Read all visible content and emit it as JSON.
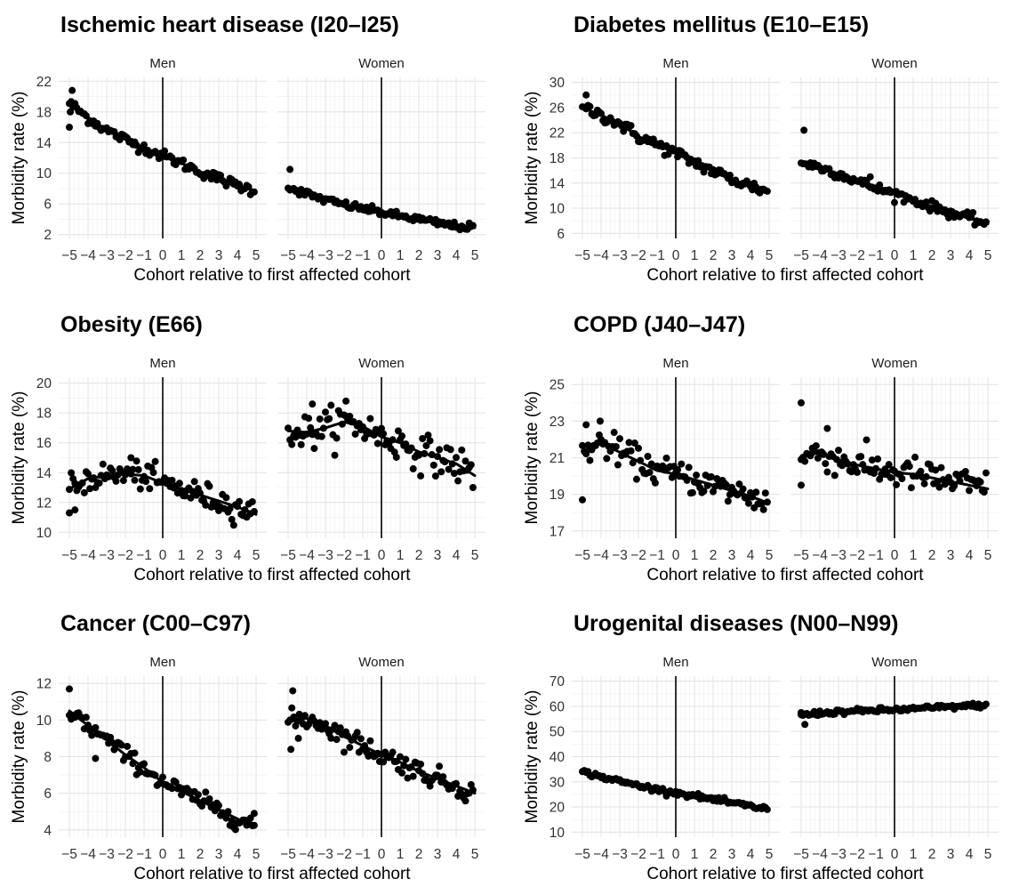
{
  "chart_data": [
    {
      "type": "scatter",
      "title": "Ischemic heart disease (I20–I25)",
      "xlabel": "Cohort relative to first affected cohort",
      "ylabel": "Morbidity rate (%)",
      "ylim": [
        1.5,
        22.5
      ],
      "yticks": [
        "2",
        "6",
        "10",
        "14",
        "18",
        "22"
      ],
      "xticks": [
        "−5",
        "−4",
        "−3",
        "−2",
        "−1",
        "0",
        "1",
        "2",
        "3",
        "4",
        "5"
      ],
      "grid": true,
      "panels": [
        {
          "label": "Men",
          "curve": [
            [
              -5,
              19.2
            ],
            [
              -4,
              17.2
            ],
            [
              -3,
              15.6
            ],
            [
              -2,
              14.4
            ],
            [
              -1,
              13.3
            ],
            [
              0,
              12.3
            ],
            [
              1,
              11.3
            ],
            [
              2,
              10.2
            ],
            [
              3,
              9.3
            ],
            [
              4,
              8.4
            ],
            [
              5,
              7.7
            ]
          ],
          "noise": 0.35,
          "outliers": [
            [
              -5,
              16.0
            ],
            [
              -4.85,
              20.8
            ],
            [
              -4.95,
              18.0
            ]
          ]
        },
        {
          "label": "Women",
          "curve": [
            [
              -5,
              8.2
            ],
            [
              -4,
              7.3
            ],
            [
              -3,
              6.5
            ],
            [
              -2,
              5.9
            ],
            [
              -1,
              5.4
            ],
            [
              0,
              4.9
            ],
            [
              1,
              4.4
            ],
            [
              2,
              4.0
            ],
            [
              3,
              3.5
            ],
            [
              4,
              3.1
            ],
            [
              5,
              2.9
            ]
          ],
          "noise": 0.25,
          "outliers": [
            [
              -4.9,
              10.5
            ]
          ]
        }
      ]
    },
    {
      "type": "scatter",
      "title": "Diabetes mellitus (E10–E15)",
      "xlabel": "Cohort relative to first affected cohort",
      "ylabel": "Morbidity rate (%)",
      "ylim": [
        5.2,
        30.8
      ],
      "yticks": [
        "6",
        "10",
        "14",
        "18",
        "22",
        "26",
        "30"
      ],
      "xticks": [
        "−5",
        "−4",
        "−3",
        "−2",
        "−1",
        "0",
        "1",
        "2",
        "3",
        "4",
        "5"
      ],
      "grid": true,
      "panels": [
        {
          "label": "Men",
          "curve": [
            [
              -5,
              26.0
            ],
            [
              -4,
              24.8
            ],
            [
              -3,
              23.4
            ],
            [
              -2,
              21.4
            ],
            [
              -1,
              20.1
            ],
            [
              0,
              18.7
            ],
            [
              1,
              17.3
            ],
            [
              2,
              15.9
            ],
            [
              3,
              14.6
            ],
            [
              4,
              13.6
            ],
            [
              5,
              12.5
            ]
          ],
          "noise": 0.5,
          "outliers": [
            [
              -4.8,
              28.0
            ]
          ]
        },
        {
          "label": "Women",
          "curve": [
            [
              -5,
              17.3
            ],
            [
              -4,
              16.5
            ],
            [
              -3,
              15.5
            ],
            [
              -2,
              14.3
            ],
            [
              -1,
              13.2
            ],
            [
              0,
              12.3
            ],
            [
              1,
              11.3
            ],
            [
              2,
              10.3
            ],
            [
              3,
              9.3
            ],
            [
              4,
              8.4
            ],
            [
              5,
              7.5
            ]
          ],
          "noise": 0.4,
          "outliers": [
            [
              -4.85,
              22.4
            ],
            [
              -1.3,
              15.0
            ]
          ]
        }
      ]
    },
    {
      "type": "scatter",
      "title": "Obesity (E66)",
      "xlabel": "Cohort relative to first affected cohort",
      "ylabel": "Morbidity rate (%)",
      "ylim": [
        9.6,
        20.4
      ],
      "yticks": [
        "10",
        "12",
        "14",
        "16",
        "18",
        "20"
      ],
      "xticks": [
        "−5",
        "−4",
        "−3",
        "−2",
        "−1",
        "0",
        "1",
        "2",
        "3",
        "4",
        "5"
      ],
      "grid": true,
      "panels": [
        {
          "label": "Men",
          "curve": [
            [
              -5,
              12.9
            ],
            [
              -4,
              13.6
            ],
            [
              -3,
              13.8
            ],
            [
              -2,
              13.9
            ],
            [
              -1,
              13.8
            ],
            [
              0,
              13.3
            ],
            [
              1,
              12.9
            ],
            [
              2,
              12.5
            ],
            [
              3,
              12.1
            ],
            [
              4,
              11.7
            ],
            [
              5,
              11.2
            ]
          ],
          "noise": 0.45,
          "outliers": [
            [
              -5,
              11.3
            ],
            [
              -4.7,
              11.5
            ],
            [
              -1.7,
              15.0
            ]
          ]
        },
        {
          "label": "Women",
          "curve": [
            [
              -5,
              16.8
            ],
            [
              -4,
              16.7
            ],
            [
              -3,
              17.0
            ],
            [
              -2,
              17.4
            ],
            [
              -1,
              17.1
            ],
            [
              0,
              16.4
            ],
            [
              1,
              16.0
            ],
            [
              2,
              15.4
            ],
            [
              3,
              15.0
            ],
            [
              4,
              14.6
            ],
            [
              5,
              13.8
            ]
          ],
          "noise": 0.6,
          "outliers": [
            [
              -1.9,
              18.8
            ],
            [
              -3.7,
              18.6
            ]
          ]
        }
      ]
    },
    {
      "type": "scatter",
      "title": "COPD (J40–J47)",
      "xlabel": "Cohort relative to first affected cohort",
      "ylabel": "Morbidity rate (%)",
      "ylim": [
        16.6,
        25.4
      ],
      "yticks": [
        "17",
        "19",
        "21",
        "23",
        "25"
      ],
      "xticks": [
        "−5",
        "−4",
        "−3",
        "−2",
        "−1",
        "0",
        "1",
        "2",
        "3",
        "4",
        "5"
      ],
      "grid": true,
      "panels": [
        {
          "label": "Men",
          "curve": [
            [
              -5,
              21.3
            ],
            [
              -4,
              21.8
            ],
            [
              -3,
              21.3
            ],
            [
              -2,
              20.8
            ],
            [
              -1,
              20.3
            ],
            [
              0,
              20.1
            ],
            [
              1,
              19.8
            ],
            [
              2,
              19.5
            ],
            [
              3,
              19.2
            ],
            [
              4,
              18.9
            ],
            [
              5,
              18.5
            ]
          ],
          "noise": 0.4,
          "outliers": [
            [
              -5,
              18.7
            ],
            [
              -4.8,
              22.8
            ],
            [
              -4.05,
              23.0
            ]
          ]
        },
        {
          "label": "Women",
          "curve": [
            [
              -5,
              21.0
            ],
            [
              -4,
              21.3
            ],
            [
              -3,
              20.9
            ],
            [
              -2,
              20.6
            ],
            [
              -1,
              20.4
            ],
            [
              0,
              20.2
            ],
            [
              1,
              20.1
            ],
            [
              2,
              19.9
            ],
            [
              3,
              19.7
            ],
            [
              4,
              19.5
            ],
            [
              5,
              19.3
            ]
          ],
          "noise": 0.45,
          "outliers": [
            [
              -5,
              24.0
            ],
            [
              -5,
              19.5
            ],
            [
              -3.6,
              22.6
            ]
          ]
        }
      ]
    },
    {
      "type": "scatter",
      "title": "Cancer (C00–C97)",
      "xlabel": "Cohort relative to first affected cohort",
      "ylabel": "Morbidity rate (%)",
      "ylim": [
        3.6,
        12.4
      ],
      "yticks": [
        "4",
        "6",
        "8",
        "10",
        "12"
      ],
      "xticks": [
        "−5",
        "−4",
        "−3",
        "−2",
        "−1",
        "0",
        "1",
        "2",
        "3",
        "4",
        "5"
      ],
      "grid": true,
      "panels": [
        {
          "label": "Men",
          "curve": [
            [
              -5,
              10.5
            ],
            [
              -4,
              9.7
            ],
            [
              -3,
              8.9
            ],
            [
              -2,
              8.1
            ],
            [
              -1,
              7.4
            ],
            [
              0,
              6.6
            ],
            [
              1,
              6.1
            ],
            [
              2,
              5.6
            ],
            [
              3,
              5.1
            ],
            [
              4,
              4.6
            ],
            [
              5,
              4.2
            ]
          ],
          "noise": 0.25,
          "outliers": [
            [
              -5,
              11.7
            ],
            [
              -3.6,
              7.9
            ],
            [
              4.9,
              4.9
            ]
          ]
        },
        {
          "label": "Women",
          "curve": [
            [
              -5,
              9.9
            ],
            [
              -4,
              10.1
            ],
            [
              -3,
              9.7
            ],
            [
              -2,
              9.1
            ],
            [
              -1,
              8.6
            ],
            [
              0,
              8.1
            ],
            [
              1,
              7.7
            ],
            [
              2,
              7.2
            ],
            [
              3,
              6.8
            ],
            [
              4,
              6.4
            ],
            [
              5,
              6.0
            ]
          ],
          "noise": 0.3,
          "outliers": [
            [
              -4.75,
              11.6
            ],
            [
              -4.85,
              8.4
            ],
            [
              -4.45,
              9.0
            ]
          ]
        }
      ]
    },
    {
      "type": "scatter",
      "title": "Urogenital diseases (N00–N99)",
      "xlabel": "Cohort relative to first affected cohort",
      "ylabel": "Morbidity rate (%)",
      "ylim": [
        8,
        72
      ],
      "yticks": [
        "10",
        "20",
        "30",
        "40",
        "50",
        "60",
        "70"
      ],
      "xticks": [
        "−5",
        "−4",
        "−3",
        "−2",
        "−1",
        "0",
        "1",
        "2",
        "3",
        "4",
        "5"
      ],
      "grid": true,
      "panels": [
        {
          "label": "Men",
          "curve": [
            [
              -5,
              34.0
            ],
            [
              -4,
              32.0
            ],
            [
              -3,
              30.2
            ],
            [
              -2,
              28.5
            ],
            [
              -1,
              27.0
            ],
            [
              0,
              25.7
            ],
            [
              1,
              24.4
            ],
            [
              2,
              23.0
            ],
            [
              3,
              21.6
            ],
            [
              4,
              20.3
            ],
            [
              5,
              19.1
            ]
          ],
          "noise": 0.5,
          "outliers": []
        },
        {
          "label": "Women",
          "curve": [
            [
              -5,
              56.5
            ],
            [
              -4,
              57.3
            ],
            [
              -3,
              57.8
            ],
            [
              -2,
              58.0
            ],
            [
              -1,
              58.4
            ],
            [
              0,
              58.6
            ],
            [
              1,
              59.0
            ],
            [
              2,
              59.4
            ],
            [
              3,
              59.8
            ],
            [
              4,
              60.2
            ],
            [
              5,
              60.5
            ]
          ],
          "noise": 0.5,
          "outliers": [
            [
              -4.8,
              52.8
            ],
            [
              -5,
              57.5
            ]
          ]
        }
      ]
    }
  ]
}
